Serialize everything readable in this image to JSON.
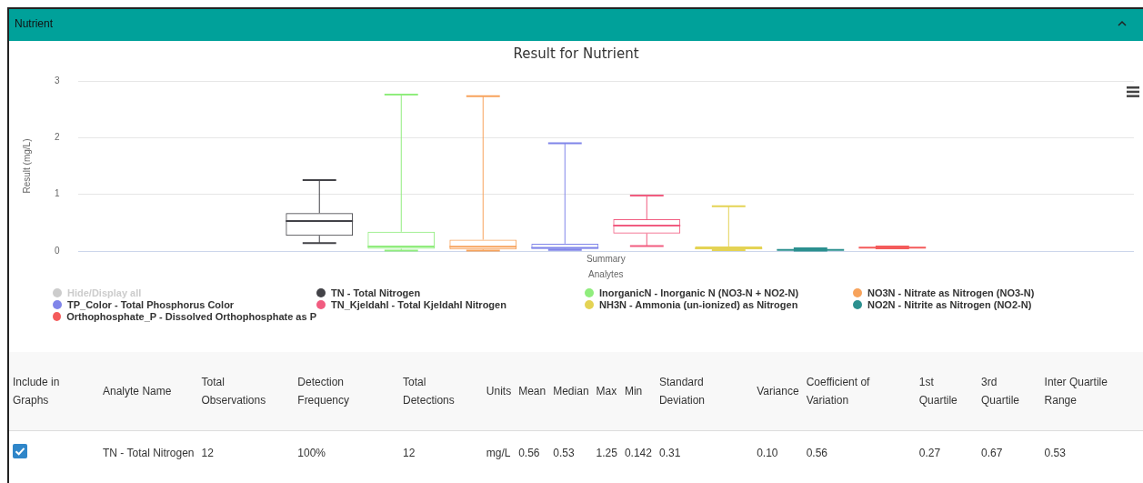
{
  "chart_data": [
    {
      "type": "box",
      "title": "Result for Nutrient",
      "xlabel": "Analytes",
      "ylabel": "Result (mg/L)",
      "categories": [
        "Summary"
      ],
      "ylim": [
        0,
        3
      ],
      "yticks": [
        0,
        1,
        2,
        3
      ],
      "grid": "y",
      "legend": "bottom",
      "annotations": [
        "Nutrient",
        "Hide/Display all"
      ],
      "series": [
        {
          "name": "TN - Total Nitrogen",
          "color": "#434348",
          "boxes": [
            {
              "low": 0.142,
              "q1": 0.27,
              "median": 0.53,
              "q3": 0.67,
              "high": 1.25
            }
          ]
        },
        {
          "name": "InorganicN - Inorganic N (NO3-N + NO2-N)",
          "color": "#90ed7d",
          "boxes": [
            {
              "low": 0.01,
              "q1": 0.04,
              "median": 0.08,
              "q3": 0.34,
              "high": 2.76
            }
          ]
        },
        {
          "name": "NO3N - Nitrate as Nitrogen (NO3-N)",
          "color": "#f7a35c",
          "boxes": [
            {
              "low": 0.01,
              "q1": 0.03,
              "median": 0.075,
              "q3": 0.2,
              "high": 2.73
            }
          ]
        },
        {
          "name": "TP_Color - Total Phosphorus Color",
          "color": "#8085e9",
          "boxes": [
            {
              "low": 0.02,
              "q1": 0.04,
              "median": 0.055,
              "q3": 0.13,
              "high": 1.9
            }
          ]
        },
        {
          "name": "TN_Kjeldahl - Total Kjeldahl Nitrogen",
          "color": "#f15c80",
          "boxes": [
            {
              "low": 0.09,
              "q1": 0.31,
              "median": 0.45,
              "q3": 0.56,
              "high": 0.98
            }
          ]
        },
        {
          "name": "NH3N - Ammonia (un-ionized) as Nitrogen",
          "color": "#e4d354",
          "boxes": [
            {
              "low": 0.015,
              "q1": 0.03,
              "median": 0.05,
              "q3": 0.08,
              "high": 0.79
            }
          ]
        },
        {
          "name": "NO2N - Nitrite as Nitrogen (NO2-N)",
          "color": "#2b908f",
          "boxes": [
            {
              "low": 0.01,
              "q1": 0.015,
              "median": 0.02,
              "q3": 0.03,
              "high": 0.05
            }
          ]
        },
        {
          "name": "Orthophosphate_P - Dissolved Orthophosphate as P",
          "color": "#f45b5b",
          "boxes": [
            {
              "low": 0.05,
              "q1": 0.055,
              "median": 0.06,
              "q3": 0.07,
              "high": 0.08
            }
          ]
        }
      ]
    },
    {
      "type": "other",
      "categories": [
        "Include in Graphs",
        "Analyte Name",
        "Total Observations",
        "Detection Frequency",
        "Total Detections",
        "Units",
        "Mean",
        "Median",
        "Max",
        "Min",
        "Standard Deviation",
        "Variance",
        "Coefficient of Variation",
        "1st Quartile",
        "3rd Quartile",
        "Inter Quartile Range"
      ],
      "value_labels": [
        null,
        "TN - Total Nitrogen",
        "12",
        "100%",
        "12",
        "mg/L",
        "0.56",
        "0.53",
        "1.25",
        "0.142",
        "0.31",
        "0.10",
        "0.56",
        "0.27",
        "0.67",
        "0.53"
      ]
    }
  ]
}
